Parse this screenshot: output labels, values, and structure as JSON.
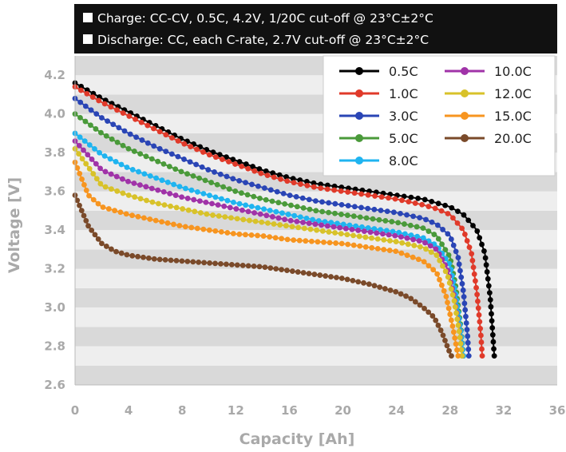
{
  "notes": [
    "Charge: CC-CV, 0.5C, 4.2V, 1/20C cut-off @ 23°C±2°C",
    "Discharge: CC, each C-rate, 2.7V cut-off @ 23°C±2°C"
  ],
  "chart_data": {
    "type": "line",
    "xlabel": "Capacity [Ah]",
    "ylabel": "Voltage [V]",
    "xlim": [
      0,
      36
    ],
    "ylim": [
      2.6,
      4.3
    ],
    "xticks": [
      0,
      4,
      8,
      12,
      16,
      20,
      24,
      28,
      32,
      36
    ],
    "yticks": [
      2.6,
      2.8,
      3.0,
      3.2,
      3.4,
      3.6,
      3.8,
      4.0,
      4.2
    ],
    "grid": "horizontal alternating bands",
    "legend_position": "top-right",
    "series": [
      {
        "name": "0.5C",
        "color": "#000000",
        "x": [
          0,
          2,
          4,
          6,
          8,
          10,
          12,
          14,
          16,
          18,
          20,
          22,
          24,
          26,
          27,
          28,
          29,
          30,
          30.6,
          31,
          31.2,
          31.3
        ],
        "y": [
          4.16,
          4.08,
          4.01,
          3.94,
          3.87,
          3.81,
          3.76,
          3.71,
          3.67,
          3.64,
          3.62,
          3.6,
          3.58,
          3.56,
          3.54,
          3.52,
          3.48,
          3.4,
          3.28,
          3.05,
          2.85,
          2.75
        ]
      },
      {
        "name": "1.0C",
        "color": "#e03a2a",
        "x": [
          0,
          2,
          4,
          6,
          8,
          10,
          12,
          14,
          16,
          18,
          20,
          22,
          24,
          26,
          27,
          28,
          29,
          29.6,
          30,
          30.3,
          30.4
        ],
        "y": [
          4.14,
          4.06,
          3.99,
          3.92,
          3.85,
          3.79,
          3.74,
          3.69,
          3.65,
          3.62,
          3.6,
          3.58,
          3.56,
          3.53,
          3.51,
          3.48,
          3.4,
          3.28,
          3.08,
          2.86,
          2.75
        ]
      },
      {
        "name": "3.0C",
        "color": "#2a45b5",
        "x": [
          0,
          2,
          4,
          6,
          8,
          10,
          12,
          14,
          16,
          18,
          20,
          22,
          24,
          26,
          27,
          28,
          28.6,
          29,
          29.3,
          29.4
        ],
        "y": [
          4.08,
          3.98,
          3.9,
          3.83,
          3.77,
          3.71,
          3.66,
          3.62,
          3.58,
          3.55,
          3.53,
          3.51,
          3.49,
          3.46,
          3.43,
          3.37,
          3.26,
          3.08,
          2.86,
          2.75
        ]
      },
      {
        "name": "5.0C",
        "color": "#4a9a3a",
        "x": [
          0,
          2,
          4,
          6,
          8,
          10,
          12,
          14,
          16,
          18,
          20,
          22,
          24,
          26,
          27,
          28,
          28.4,
          28.8,
          29
        ],
        "y": [
          4.0,
          3.9,
          3.82,
          3.76,
          3.7,
          3.65,
          3.6,
          3.56,
          3.53,
          3.5,
          3.48,
          3.46,
          3.44,
          3.41,
          3.37,
          3.26,
          3.12,
          2.9,
          2.75
        ]
      },
      {
        "name": "8.0C",
        "color": "#1fb4f0",
        "x": [
          0,
          2,
          4,
          6,
          8,
          10,
          12,
          14,
          16,
          18,
          20,
          22,
          24,
          26,
          27,
          28,
          28.4,
          28.8,
          29
        ],
        "y": [
          3.9,
          3.79,
          3.72,
          3.67,
          3.62,
          3.58,
          3.54,
          3.51,
          3.48,
          3.45,
          3.43,
          3.41,
          3.39,
          3.36,
          3.32,
          3.22,
          3.08,
          2.88,
          2.75
        ]
      },
      {
        "name": "10.0C",
        "color": "#a033a8",
        "x": [
          0,
          2,
          4,
          6,
          8,
          10,
          12,
          14,
          16,
          18,
          20,
          22,
          24,
          26,
          27,
          27.8,
          28.3,
          28.7,
          28.9
        ],
        "y": [
          3.86,
          3.71,
          3.65,
          3.61,
          3.57,
          3.54,
          3.51,
          3.48,
          3.45,
          3.43,
          3.41,
          3.39,
          3.37,
          3.34,
          3.3,
          3.2,
          3.06,
          2.88,
          2.75
        ]
      },
      {
        "name": "12.0C",
        "color": "#d8c22a",
        "x": [
          0,
          2,
          4,
          6,
          8,
          10,
          12,
          14,
          16,
          18,
          20,
          22,
          24,
          26,
          27,
          27.8,
          28.3,
          28.7,
          28.9
        ],
        "y": [
          3.82,
          3.63,
          3.58,
          3.54,
          3.51,
          3.48,
          3.46,
          3.44,
          3.42,
          3.4,
          3.38,
          3.36,
          3.34,
          3.31,
          3.27,
          3.17,
          3.04,
          2.87,
          2.75
        ]
      },
      {
        "name": "15.0C",
        "color": "#f79520",
        "x": [
          0,
          1,
          2,
          4,
          6,
          8,
          10,
          12,
          14,
          16,
          18,
          20,
          22,
          24,
          26,
          27,
          27.7,
          28.2,
          28.6
        ],
        "y": [
          3.75,
          3.58,
          3.52,
          3.48,
          3.45,
          3.42,
          3.4,
          3.38,
          3.37,
          3.35,
          3.34,
          3.33,
          3.31,
          3.29,
          3.24,
          3.18,
          3.06,
          2.9,
          2.75
        ]
      },
      {
        "name": "20.0C",
        "color": "#7a4a2a",
        "x": [
          0,
          1,
          2,
          3,
          4,
          6,
          8,
          10,
          12,
          14,
          16,
          18,
          20,
          22,
          24,
          25,
          26,
          26.8,
          27.4,
          27.9,
          28.1
        ],
        "y": [
          3.58,
          3.42,
          3.33,
          3.29,
          3.27,
          3.25,
          3.24,
          3.23,
          3.22,
          3.21,
          3.19,
          3.17,
          3.15,
          3.12,
          3.08,
          3.05,
          3.0,
          2.95,
          2.87,
          2.78,
          2.75
        ]
      }
    ]
  }
}
